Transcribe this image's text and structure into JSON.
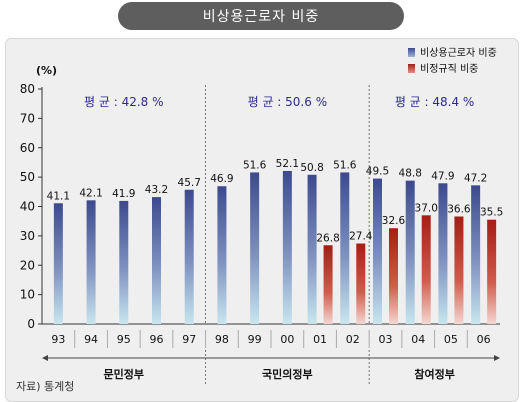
{
  "title": "비상용근로자 비중",
  "source": "자료) 통계청",
  "chart_data": {
    "type": "bar",
    "ylabel": "(%)",
    "ylim": [
      0,
      80
    ],
    "yticks": [
      0,
      10,
      20,
      30,
      40,
      50,
      60,
      70,
      80
    ],
    "grid": false,
    "legend_position": "top-right",
    "categories": [
      "93",
      "94",
      "95",
      "96",
      "97",
      "98",
      "99",
      "00",
      "01",
      "02",
      "03",
      "04",
      "05",
      "06"
    ],
    "series": [
      {
        "name": "비상용근로자 비중",
        "color": "#4a5899",
        "values": [
          41.1,
          42.1,
          41.9,
          43.2,
          45.7,
          46.9,
          51.6,
          52.1,
          50.8,
          51.6,
          49.5,
          48.8,
          47.9,
          47.2
        ],
        "labels": [
          "41.1",
          "42.1",
          "41.9",
          "43.2",
          "45.7",
          "46.9",
          "51.6",
          "52.1",
          "50.8",
          "51.6",
          "49.5",
          "48.8",
          "47.9",
          "47.2"
        ]
      },
      {
        "name": "비정규직 비중",
        "color": "#b02418",
        "values": [
          null,
          null,
          null,
          null,
          null,
          null,
          null,
          null,
          26.8,
          27.4,
          32.6,
          37.0,
          36.6,
          35.5
        ],
        "labels": [
          "",
          "",
          "",
          "",
          "",
          "",
          "",
          "",
          "26.8",
          "27.4",
          "32.6",
          "37.0",
          "36.6",
          "35.5"
        ]
      }
    ],
    "periods": [
      {
        "name": "문민정부",
        "average": "평 균 :  42.8 %",
        "from": 0,
        "to": 4
      },
      {
        "name": "국민의정부",
        "average": "평 균 : 50.6 %",
        "from": 5,
        "to": 9
      },
      {
        "name": "참여정부",
        "average": "평 균 :  48.4 %",
        "from": 10,
        "to": 13
      }
    ]
  }
}
